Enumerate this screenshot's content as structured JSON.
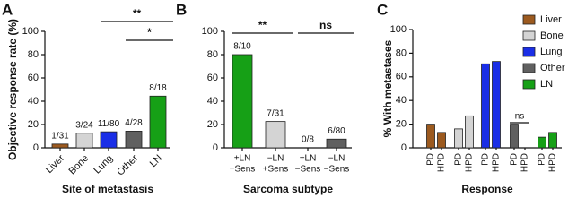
{
  "chart_data": [
    {
      "type": "bar",
      "panel": "A",
      "ylabel": "Objective response rate (%)",
      "xlabel": "Site of metastasis",
      "categories": [
        "Liver",
        "Bone",
        "Lung",
        "Other",
        "LN"
      ],
      "values": [
        3.2,
        12.5,
        13.75,
        14.3,
        44.4
      ],
      "value_labels": [
        "1/31",
        "3/24",
        "11/80",
        "4/28",
        "8/18"
      ],
      "colors": [
        "#9c5a1f",
        "#d4d4d4",
        "#1a2ee6",
        "#606060",
        "#16a016"
      ],
      "ylim": [
        0,
        100
      ],
      "yticks": [
        0,
        20,
        40,
        60,
        80,
        100
      ],
      "annotations": [
        {
          "text": "**",
          "from": 2,
          "to": 4
        },
        {
          "text": "*",
          "from": 3,
          "to": 4
        }
      ]
    },
    {
      "type": "bar",
      "panel": "B",
      "xlabel": "Sarcoma subtype",
      "categories": [
        [
          "+LN",
          "+Sens"
        ],
        [
          "−LN",
          "+Sens"
        ],
        [
          "+LN",
          "−Sens"
        ],
        [
          "−LN",
          "−Sens"
        ]
      ],
      "values": [
        80,
        22.6,
        0,
        7.5
      ],
      "value_labels": [
        "8/10",
        "7/31",
        "0/8",
        "6/80"
      ],
      "colors": [
        "#16a016",
        "#d4d4d4",
        "#ffffff",
        "#606060"
      ],
      "ylim": [
        0,
        100
      ],
      "yticks": [
        0,
        20,
        40,
        60,
        80,
        100
      ],
      "annotations": [
        {
          "text": "**",
          "from": 0,
          "to": 1
        },
        {
          "text": "ns",
          "from": 2,
          "to": 3
        }
      ]
    },
    {
      "type": "grouped-bar",
      "panel": "C",
      "ylabel": "% With metastases",
      "xlabel": "Response",
      "categories": [
        "PD",
        "HPD"
      ],
      "series": [
        {
          "name": "Liver",
          "color": "#9c5a1f",
          "values": [
            20,
            13
          ]
        },
        {
          "name": "Bone",
          "color": "#d4d4d4",
          "values": [
            16,
            27
          ]
        },
        {
          "name": "Lung",
          "color": "#1a2ee6",
          "values": [
            71,
            73
          ]
        },
        {
          "name": "Other",
          "color": "#606060",
          "values": [
            20,
            0
          ]
        },
        {
          "name": "LN",
          "color": "#16a016",
          "values": [
            9,
            13
          ]
        }
      ],
      "ylim": [
        0,
        100
      ],
      "yticks": [
        0,
        20,
        40,
        60,
        80,
        100
      ],
      "annotations": [
        {
          "text": "ns",
          "series": 3
        }
      ]
    }
  ]
}
